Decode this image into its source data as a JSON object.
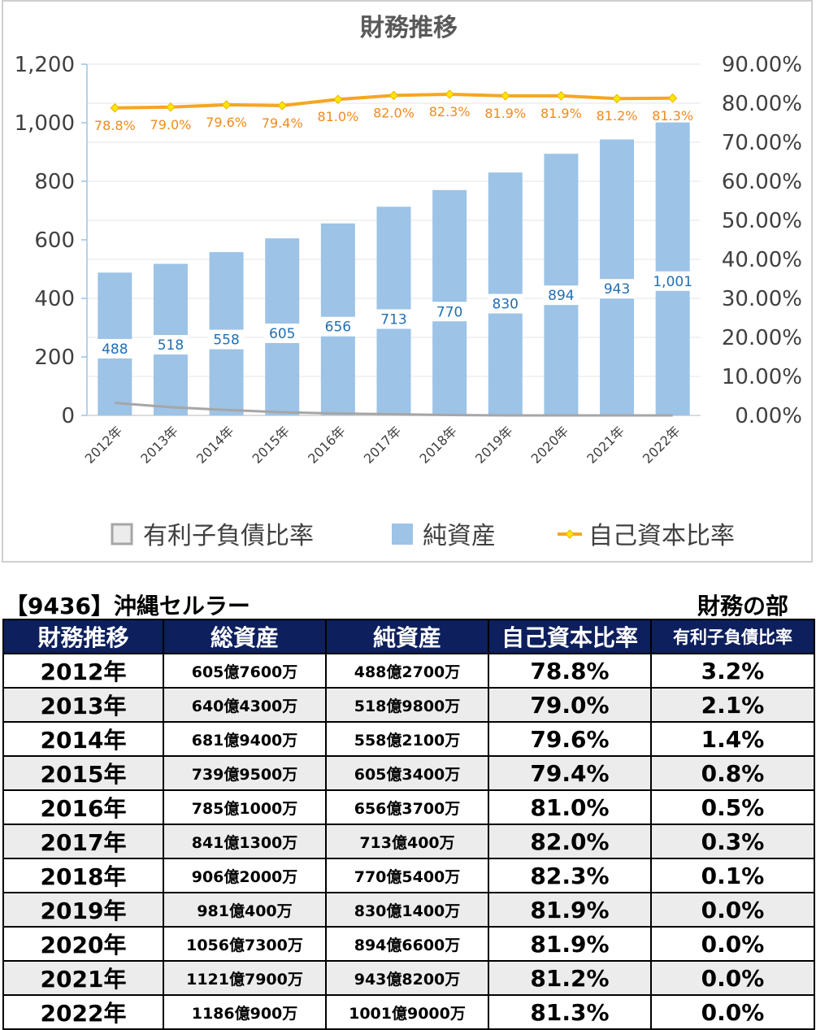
{
  "chart_data": {
    "type": "bar",
    "title": "財務推移",
    "categories": [
      "2012年",
      "2013年",
      "2014年",
      "2015年",
      "2016年",
      "2017年",
      "2018年",
      "2019年",
      "2020年",
      "2021年",
      "2022年"
    ],
    "series": [
      {
        "name": "純資産",
        "kind": "bar",
        "axis": "left",
        "color": "#9dc3e6",
        "values": [
          488,
          518,
          558,
          605,
          656,
          713,
          770,
          830,
          894,
          943,
          1001
        ],
        "labels": [
          "488",
          "518",
          "558",
          "605",
          "656",
          "713",
          "770",
          "830",
          "894",
          "943",
          "1,001"
        ]
      },
      {
        "name": "有利子負債比率",
        "kind": "area",
        "axis": "right",
        "color": "#bfbfbf",
        "values": [
          3.2,
          2.1,
          1.4,
          0.8,
          0.5,
          0.3,
          0.1,
          0.0,
          0.0,
          0.0,
          0.0
        ]
      },
      {
        "name": "自己資本比率",
        "kind": "line",
        "axis": "right",
        "color": "#f5a623",
        "values": [
          78.8,
          79.0,
          79.6,
          79.4,
          81.0,
          82.0,
          82.3,
          81.9,
          81.9,
          81.2,
          81.3
        ],
        "labels": [
          "78.8%",
          "79.0%",
          "79.6%",
          "79.4%",
          "81.0%",
          "82.0%",
          "82.3%",
          "81.9%",
          "81.9%",
          "81.2%",
          "81.3%"
        ]
      }
    ],
    "y_left": {
      "range": [
        0,
        1200
      ],
      "ticks": [
        "0",
        "200",
        "400",
        "600",
        "800",
        "1,000",
        "1,200"
      ]
    },
    "y_right": {
      "range": [
        0,
        90
      ],
      "ticks": [
        "0.00%",
        "10.00%",
        "20.00%",
        "30.00%",
        "40.00%",
        "50.00%",
        "60.00%",
        "70.00%",
        "80.00%",
        "90.00%"
      ]
    },
    "legend_position": "bottom",
    "legend_order": [
      "有利子負債比率",
      "純資産",
      "自己資本比率"
    ]
  },
  "table": {
    "company": "【9436】沖縄セルラー",
    "section": "財務の部",
    "headers": [
      "財務推移",
      "総資産",
      "純資産",
      "自己資本比率",
      "有利子負債比率"
    ],
    "rows": [
      [
        "2012年",
        "605億7600万",
        "488億2700万",
        "78.8%",
        "3.2%"
      ],
      [
        "2013年",
        "640億4300万",
        "518億9800万",
        "79.0%",
        "2.1%"
      ],
      [
        "2014年",
        "681億9400万",
        "558億2100万",
        "79.6%",
        "1.4%"
      ],
      [
        "2015年",
        "739億9500万",
        "605億3400万",
        "79.4%",
        "0.8%"
      ],
      [
        "2016年",
        "785億1000万",
        "656億3700万",
        "81.0%",
        "0.5%"
      ],
      [
        "2017年",
        "841億1300万",
        "713億400万",
        "82.0%",
        "0.3%"
      ],
      [
        "2018年",
        "906億2000万",
        "770億5400万",
        "82.3%",
        "0.1%"
      ],
      [
        "2019年",
        "981億400万",
        "830億1400万",
        "81.9%",
        "0.0%"
      ],
      [
        "2020年",
        "1056億7300万",
        "894億6600万",
        "81.9%",
        "0.0%"
      ],
      [
        "2021年",
        "1121億7900万",
        "943億8200万",
        "81.2%",
        "0.0%"
      ],
      [
        "2022年",
        "1186億900万",
        "1001億9000万",
        "81.3%",
        "0.0%"
      ]
    ]
  }
}
